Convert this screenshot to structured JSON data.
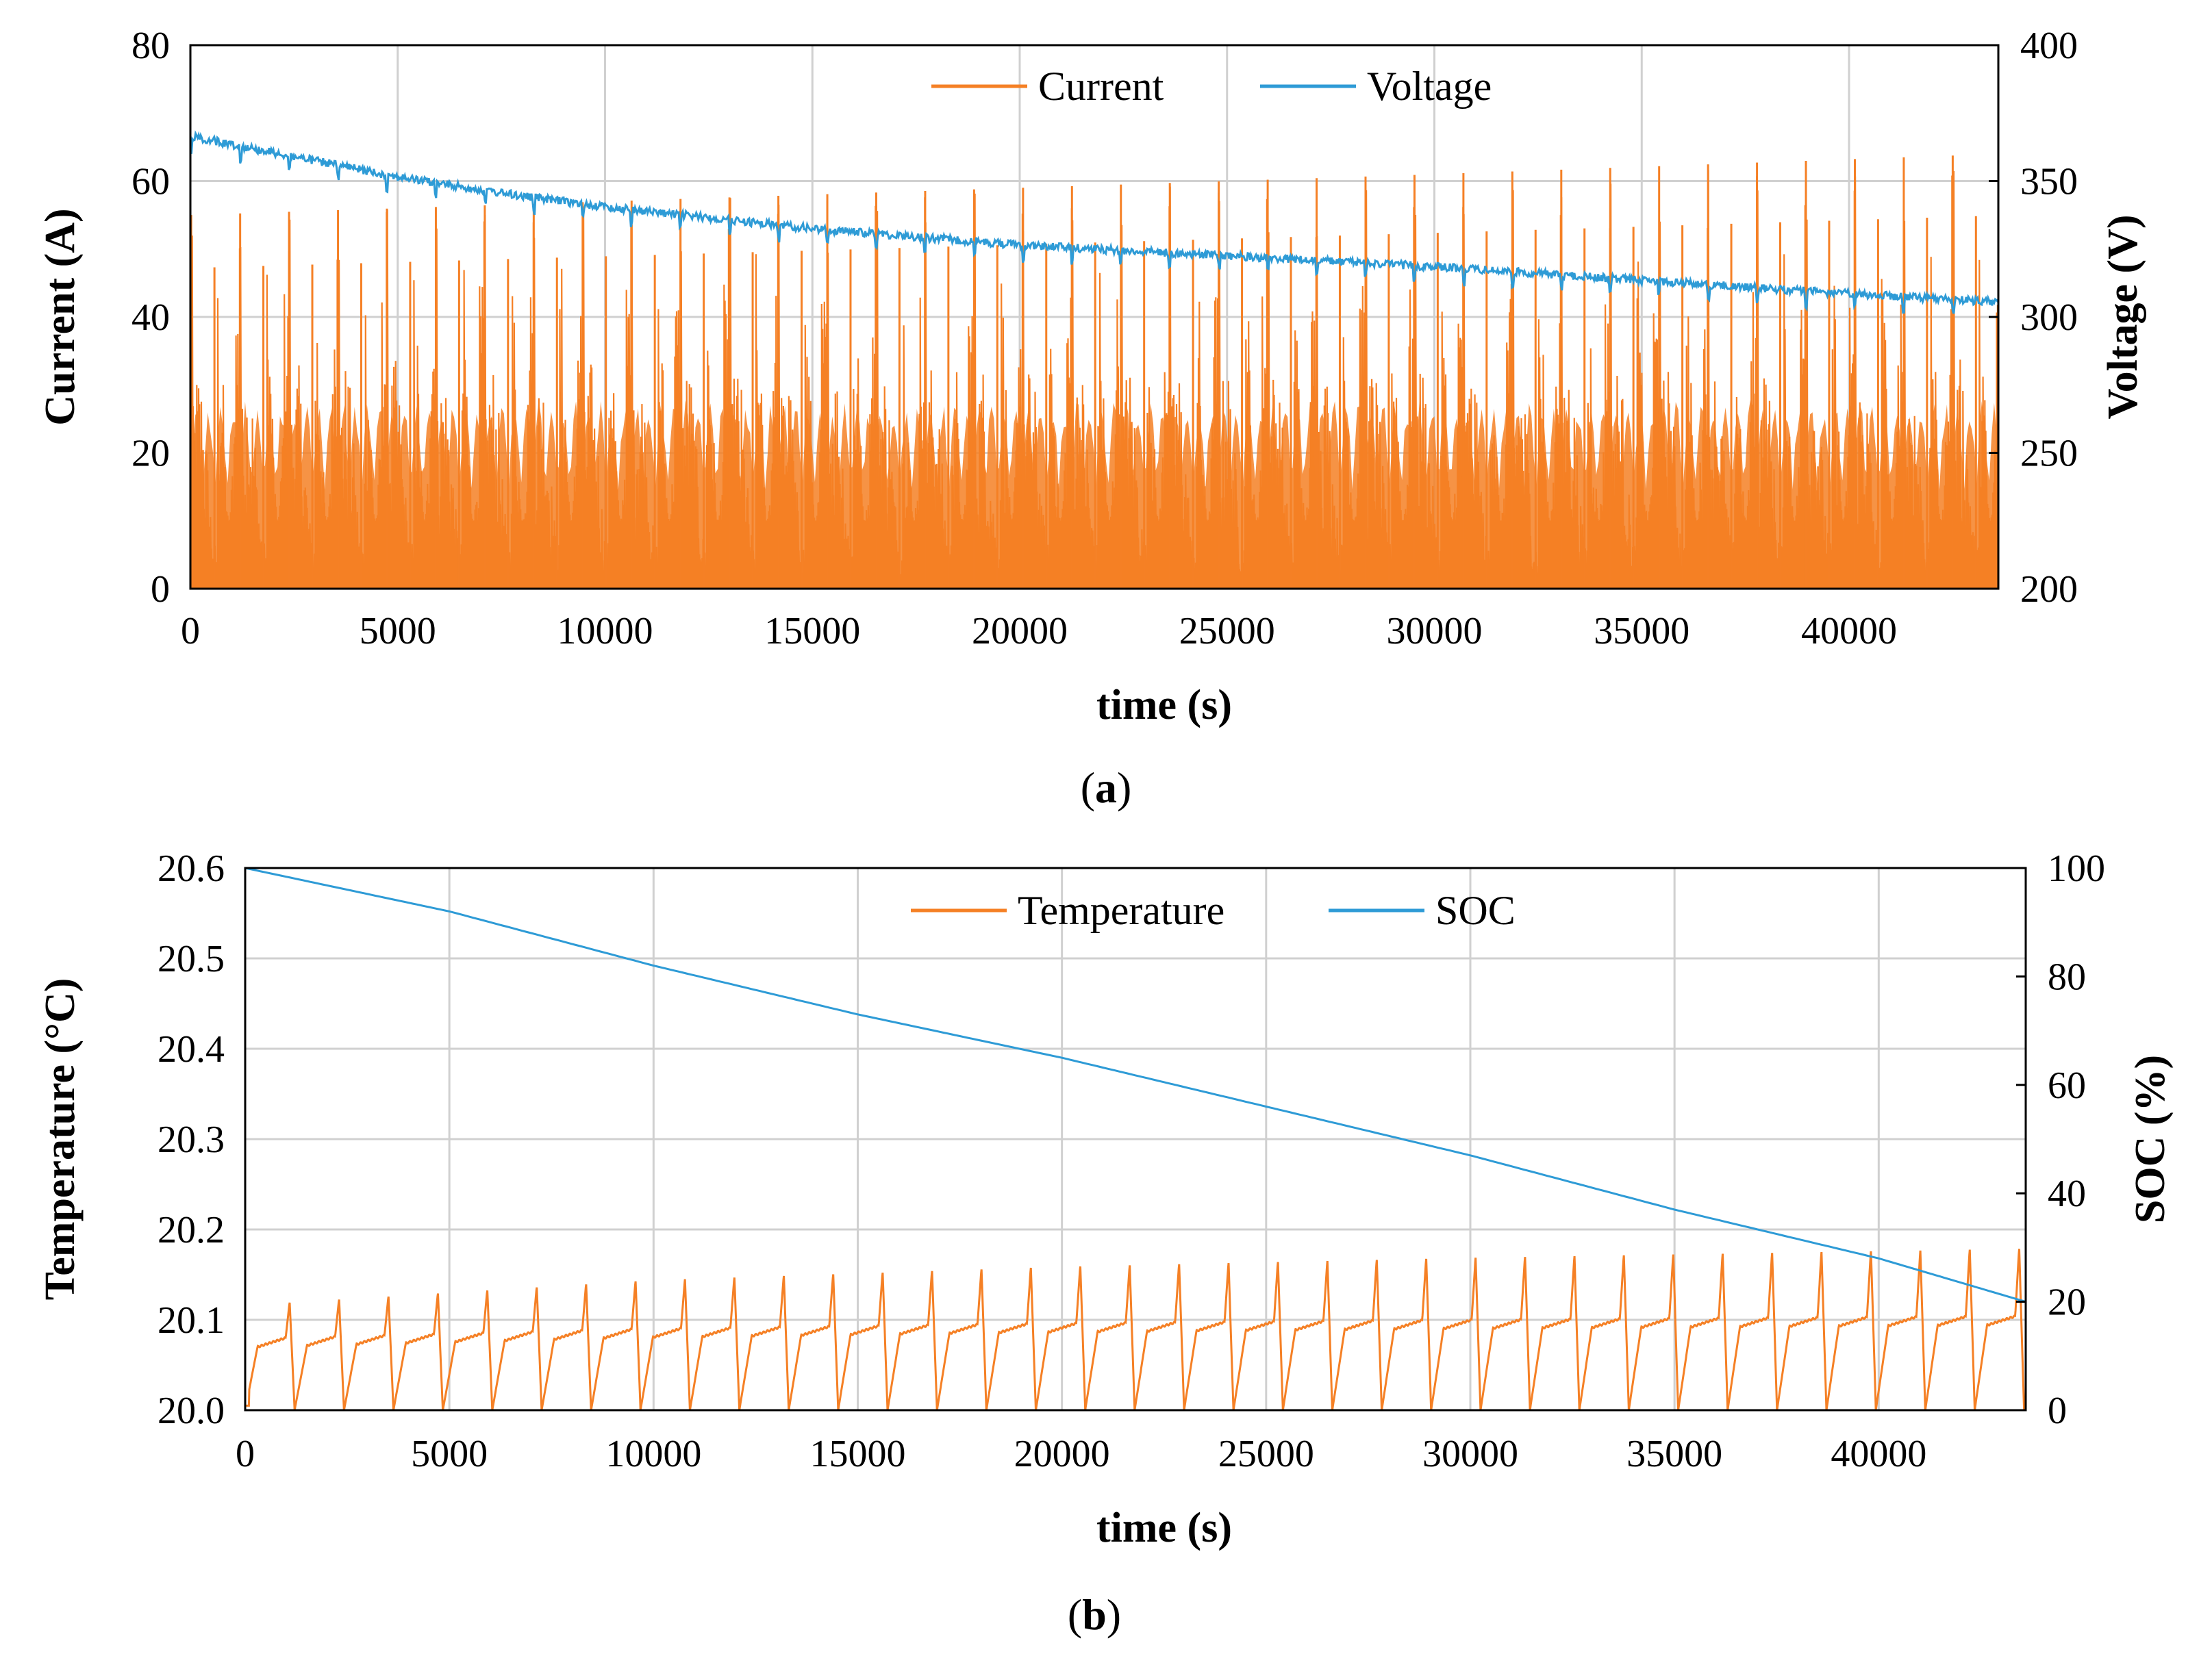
{
  "chart_data": [
    {
      "id": "a",
      "type": "line",
      "caption_letter": "a",
      "xlabel": "time (s)",
      "ylabel_left": "Current  (A)",
      "ylabel_right": "Voltage (V)",
      "xlim": [
        0,
        43600
      ],
      "ylim_left": [
        0,
        80
      ],
      "ylim_right": [
        200,
        400
      ],
      "x_ticks": [
        "0",
        "5000",
        "10000",
        "15000",
        "20000",
        "25000",
        "30000",
        "35000",
        "40000"
      ],
      "y_ticks_left": [
        "0",
        "20",
        "40",
        "60",
        "80"
      ],
      "y_ticks_right": [
        "200",
        "250",
        "300",
        "350",
        "400"
      ],
      "grid": true,
      "legend_position": "top-center",
      "cycle_period_s": 1180,
      "series": [
        {
          "name": "Current",
          "axis": "left",
          "color": "#F58025",
          "style": "dense oscillating fill from 0",
          "peak_envelope": {
            "x": [
              0,
              10000,
              20000,
              30000,
              43600
            ],
            "y": [
              55,
              57,
              59,
              61,
              64
            ]
          }
        },
        {
          "name": "Voltage",
          "axis": "right",
          "color": "#2E9BD6",
          "style": "noisy decaying line",
          "x": [
            0,
            2000,
            5000,
            8000,
            10000,
            15000,
            20000,
            25000,
            30000,
            35000,
            40000,
            43600
          ],
          "y": [
            368,
            362,
            353,
            346,
            342,
            334,
            328,
            324,
            320,
            315,
            310,
            307
          ]
        }
      ]
    },
    {
      "id": "b",
      "type": "line",
      "caption_letter": "b",
      "xlabel": "time (s)",
      "ylabel_left": "Temperature  (°C)",
      "ylabel_right": "SOC (%)",
      "xlim": [
        0,
        43600
      ],
      "ylim_left": [
        20.0,
        20.6
      ],
      "ylim_right": [
        0,
        100
      ],
      "x_ticks": [
        "0",
        "5000",
        "10000",
        "15000",
        "20000",
        "25000",
        "30000",
        "35000",
        "40000"
      ],
      "y_ticks_left": [
        "20.0",
        "20.1",
        "20.2",
        "20.3",
        "20.4",
        "20.5",
        "20.6"
      ],
      "y_ticks_right": [
        "0",
        "20",
        "40",
        "60",
        "80",
        "100"
      ],
      "grid": true,
      "legend_position": "top-center",
      "cycle_period_s": 1210,
      "series": [
        {
          "name": "Temperature",
          "axis": "left",
          "color": "#F58025",
          "style": "sawtooth per cycle",
          "base_value": 20.0,
          "plateau_value": 20.08,
          "peak_envelope": {
            "x": [
              1100,
              10000,
              20000,
              30000,
              43500
            ],
            "y": [
              20.12,
              20.145,
              20.16,
              20.17,
              20.18
            ]
          }
        },
        {
          "name": "SOC",
          "axis": "right",
          "color": "#2E9BD6",
          "style": "near-linear decline",
          "x": [
            0,
            5000,
            10000,
            15000,
            20000,
            25000,
            30000,
            35000,
            40000,
            43600
          ],
          "y": [
            100,
            92,
            82,
            73,
            65,
            56,
            47,
            37,
            28,
            20
          ]
        }
      ]
    }
  ]
}
